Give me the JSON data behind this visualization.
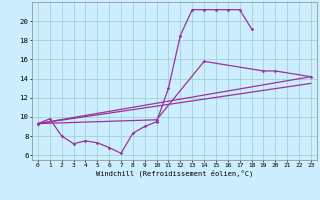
{
  "background_color": "#cceeff",
  "line_color": "#993399",
  "grid_color": "#99cccc",
  "xlim": [
    -0.5,
    23.5
  ],
  "ylim": [
    5.5,
    22.0
  ],
  "yticks": [
    6,
    8,
    10,
    12,
    14,
    16,
    18,
    20
  ],
  "xticks": [
    0,
    1,
    2,
    3,
    4,
    5,
    6,
    7,
    8,
    9,
    10,
    11,
    12,
    13,
    14,
    15,
    16,
    17,
    18,
    19,
    20,
    21,
    22,
    23
  ],
  "xlabel": "Windchill (Refroidissement éolien,°C)",
  "tick_fontsize": 4.5,
  "xlabel_fontsize": 5.0,
  "line1_x": [
    0,
    1,
    2,
    3,
    4,
    5,
    6,
    7,
    8,
    9,
    10,
    11,
    12,
    13,
    14,
    15,
    16,
    17,
    18
  ],
  "line1_y": [
    9.3,
    9.8,
    8.0,
    7.2,
    7.5,
    7.3,
    6.8,
    6.2,
    8.3,
    9.0,
    9.5,
    13.0,
    18.5,
    21.2,
    21.2,
    21.2,
    21.2,
    21.2,
    19.2
  ],
  "line2_x": [
    0,
    23
  ],
  "line2_y": [
    9.3,
    14.2
  ],
  "line3_x": [
    0,
    10,
    14,
    19,
    20,
    23
  ],
  "line3_y": [
    9.3,
    9.7,
    15.8,
    14.8,
    14.8,
    14.2
  ],
  "line4_x": [
    0,
    23
  ],
  "line4_y": [
    9.3,
    13.5
  ]
}
